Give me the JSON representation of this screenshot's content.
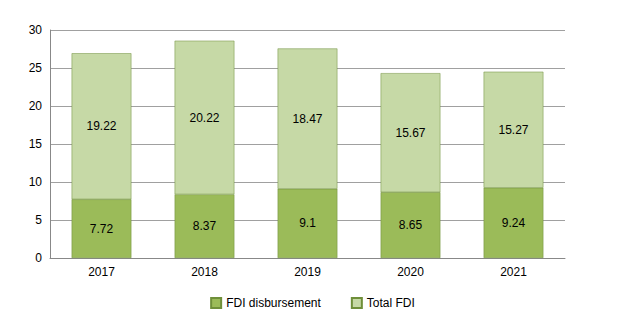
{
  "chart_data": {
    "type": "bar",
    "categories": [
      "2017",
      "2018",
      "2019",
      "2020",
      "2021"
    ],
    "series": [
      {
        "name": "FDI disbursement",
        "color": "#9bbb59",
        "values": [
          7.72,
          8.37,
          9.1,
          8.65,
          9.24
        ]
      },
      {
        "name": "Total FDI",
        "color": "#c6d9a6",
        "values": [
          19.22,
          20.22,
          18.47,
          15.67,
          15.27
        ]
      }
    ],
    "ylim": [
      0,
      30
    ],
    "yticks": [
      0,
      5,
      10,
      15,
      20,
      25,
      30
    ],
    "grid": true,
    "stacked": true,
    "data_labels": true,
    "legend": "bottom"
  }
}
